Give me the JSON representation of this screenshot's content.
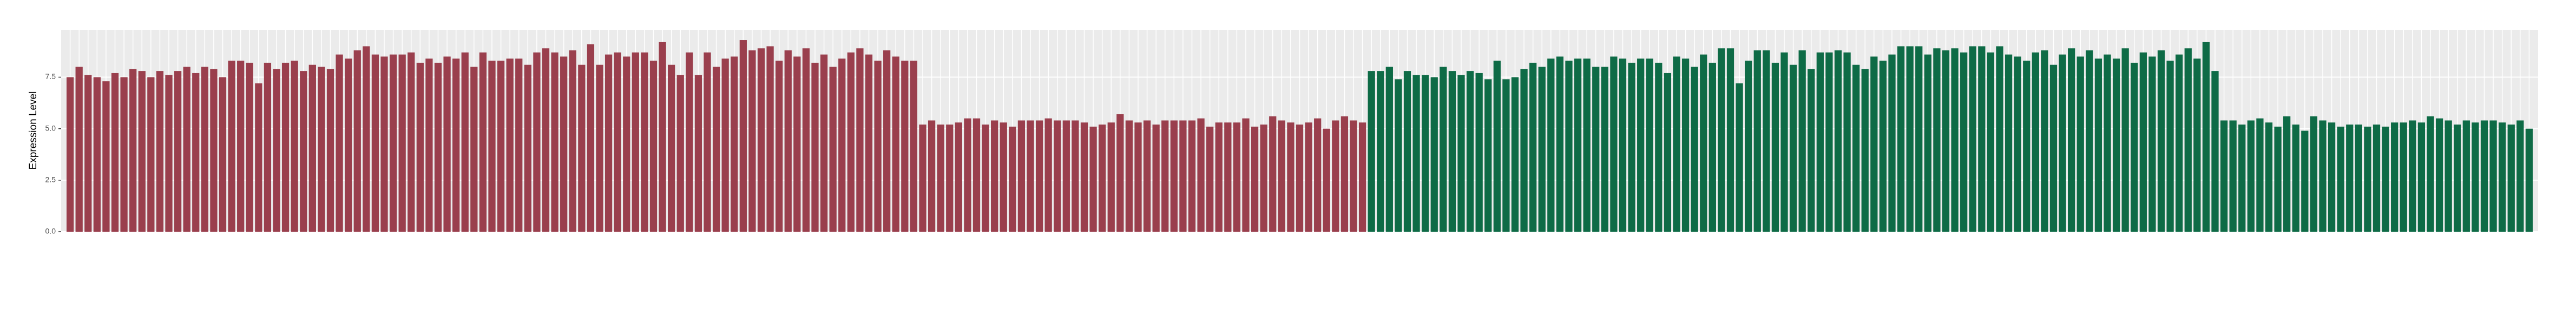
{
  "chart_data": {
    "type": "bar",
    "y_label": "Expression Level",
    "ylim": [
      0,
      9.8
    ],
    "yticks": [
      {
        "value": 0,
        "label": "0.0"
      },
      2.5,
      {
        "value": 5,
        "label": "5.0"
      },
      7.5
    ],
    "grid": true,
    "series": [
      {
        "color": "#9a3f4d",
        "values": [
          7.5,
          8.0,
          7.6,
          7.5,
          7.3,
          7.7,
          7.5,
          7.9,
          7.8,
          7.5,
          7.8,
          7.6,
          7.8,
          8.0,
          7.7,
          8.0,
          7.9,
          7.5,
          8.3,
          8.3,
          8.2,
          7.2,
          8.2,
          7.9,
          8.2,
          8.3,
          7.8,
          8.1,
          8.0,
          7.9,
          8.6,
          8.4,
          8.8,
          9.0,
          8.6,
          8.5,
          8.6,
          8.6,
          8.7,
          8.2,
          8.4,
          8.2,
          8.5,
          8.4,
          8.7,
          8.0,
          8.7,
          8.3,
          8.3,
          8.4,
          8.4,
          8.1,
          8.7,
          8.9,
          8.7,
          8.5,
          8.8,
          8.1,
          9.1,
          8.1,
          8.6,
          8.7,
          8.5,
          8.7,
          8.7,
          8.3,
          9.2,
          8.1,
          7.6,
          8.7,
          7.6,
          8.7,
          8.0,
          8.4,
          8.5,
          9.3,
          8.8,
          8.9,
          9.0,
          8.3,
          8.8,
          8.5,
          8.9,
          8.2,
          8.6,
          8.0,
          8.4,
          8.7,
          8.9,
          8.6,
          8.3,
          8.8,
          8.5,
          8.3,
          8.3,
          5.2,
          5.4,
          5.2,
          5.2,
          5.3,
          5.5,
          5.5,
          5.2,
          5.4,
          5.3,
          5.1,
          5.4,
          5.4,
          5.4,
          5.5,
          5.4,
          5.4,
          5.4,
          5.3,
          5.1,
          5.2,
          5.3,
          5.7,
          5.4,
          5.3,
          5.4,
          5.2,
          5.4,
          5.4,
          5.4,
          5.4,
          5.5,
          5.1,
          5.3,
          5.3,
          5.3,
          5.5,
          5.1,
          5.2,
          5.6,
          5.4,
          5.3,
          5.2,
          5.3,
          5.5,
          5.0,
          5.4,
          5.6,
          5.4,
          5.3
        ]
      },
      {
        "color": "#0e6b46",
        "values": [
          7.8,
          7.8,
          8.0,
          7.4,
          7.8,
          7.6,
          7.6,
          7.5,
          8.0,
          7.8,
          7.6,
          7.8,
          7.7,
          7.4,
          8.3,
          7.4,
          7.5,
          7.9,
          8.2,
          8.0,
          8.4,
          8.5,
          8.3,
          8.4,
          8.4,
          8.0,
          8.0,
          8.5,
          8.4,
          8.2,
          8.4,
          8.4,
          8.2,
          7.7,
          8.5,
          8.4,
          8.0,
          8.6,
          8.2,
          8.9,
          8.9,
          7.2,
          8.3,
          8.8,
          8.8,
          8.2,
          8.7,
          8.1,
          8.8,
          7.9,
          8.7,
          8.7,
          8.8,
          8.7,
          8.1,
          7.9,
          8.5,
          8.3,
          8.6,
          9.0,
          9.0,
          9.0,
          8.6,
          8.9,
          8.8,
          8.9,
          8.7,
          9.0,
          9.0,
          8.7,
          9.0,
          8.6,
          8.5,
          8.3,
          8.7,
          8.8,
          8.1,
          8.6,
          8.9,
          8.5,
          8.8,
          8.4,
          8.6,
          8.4,
          8.9,
          8.2,
          8.7,
          8.5,
          8.8,
          8.3,
          8.6,
          8.9,
          8.4,
          9.2,
          7.8,
          5.4,
          5.4,
          5.2,
          5.4,
          5.5,
          5.3,
          5.1,
          5.6,
          5.2,
          4.9,
          5.6,
          5.4,
          5.3,
          5.1,
          5.2,
          5.2,
          5.1,
          5.2,
          5.1,
          5.3,
          5.3,
          5.4,
          5.3,
          5.6,
          5.5,
          5.4,
          5.2,
          5.4,
          5.3,
          5.4,
          5.4,
          5.3,
          5.2,
          5.4,
          5.0
        ]
      }
    ]
  }
}
